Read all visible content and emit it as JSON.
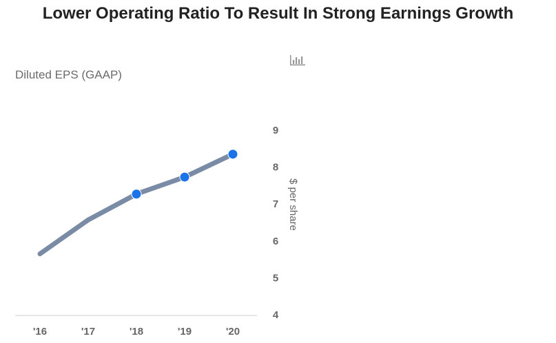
{
  "chart_title": "Lower Operating Ratio To Result In Strong Earnings Growth",
  "icons": {
    "chart_type": "bar-chart-icon"
  },
  "colors": {
    "line": "#7a8ba6",
    "marker": "#1a73e8",
    "axis": "#cccccc",
    "text": "#666666"
  },
  "chart_data": {
    "type": "line",
    "title": "Diluted EPS (GAAP)",
    "ylabel": "$ per share",
    "xlabel": "",
    "categories": [
      "'16",
      "'17",
      "'18",
      "'19",
      "'20"
    ],
    "series": [
      {
        "values": [
          5.65,
          6.57,
          7.27,
          7.73,
          8.35
        ],
        "markers": [
          false,
          false,
          true,
          true,
          true
        ]
      }
    ],
    "yticks": [
      "4",
      "5",
      "6",
      "7",
      "8",
      "9"
    ],
    "ylim": [
      4,
      9
    ],
    "grid": false,
    "legend": "none"
  }
}
